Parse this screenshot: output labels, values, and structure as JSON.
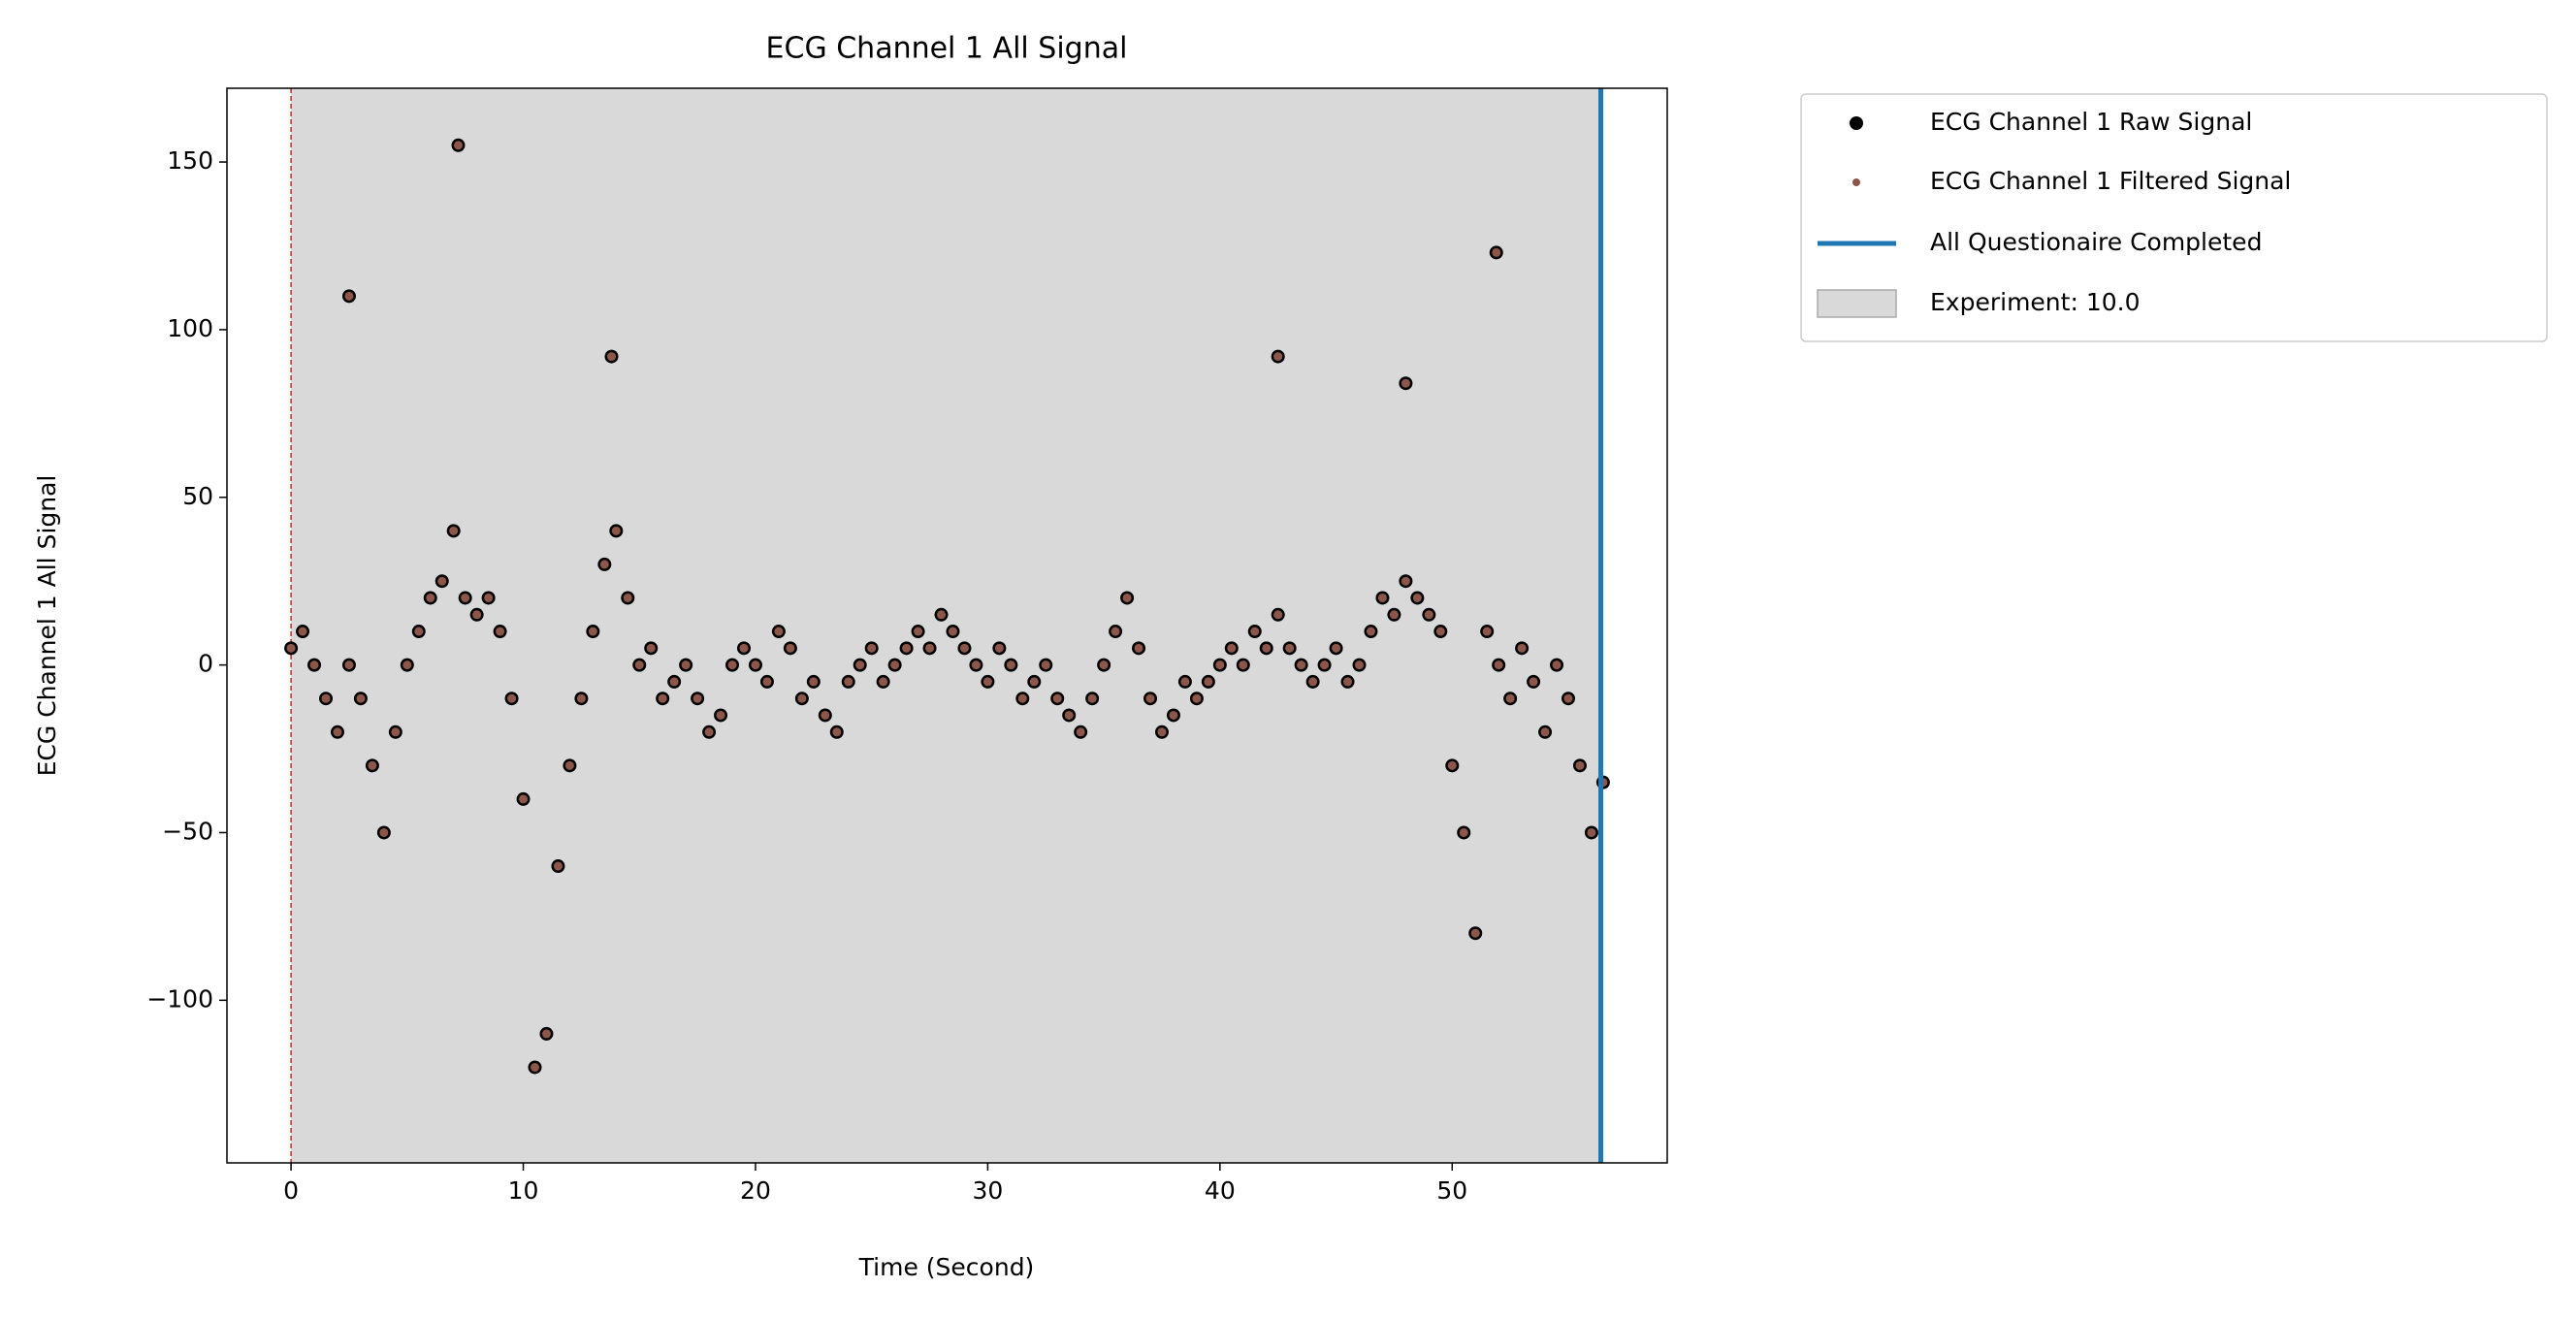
{
  "chart_data": {
    "type": "scatter",
    "title": "ECG Channel 1 All Signal",
    "xlabel": "Time (Second)",
    "ylabel": "ECG Channel 1 All Signal",
    "xlim": [
      -2.76,
      59.26
    ],
    "ylim": [
      -148.5,
      172
    ],
    "xticks": [
      0,
      10,
      20,
      30,
      40,
      50
    ],
    "yticks": [
      {
        "value": -100,
        "label": "−100"
      },
      {
        "value": -50,
        "label": "−50"
      },
      0,
      50,
      100,
      150
    ],
    "x": [
      0,
      0.5,
      1,
      1.5,
      2,
      2.5,
      2.5,
      3,
      3.5,
      4,
      4.5,
      5,
      5.5,
      6,
      6.5,
      7,
      7.2,
      7.5,
      8,
      8.5,
      9,
      9.5,
      10,
      10.5,
      11,
      11.5,
      12,
      12.5,
      13,
      13.5,
      13.8,
      14,
      14.5,
      15,
      15.5,
      16,
      16.5,
      17,
      17.5,
      18,
      18.5,
      19,
      19.5,
      20,
      20.5,
      21,
      21.5,
      22,
      22.5,
      23,
      23.5,
      24,
      24.5,
      25,
      25.5,
      26,
      26.5,
      27,
      27.5,
      28,
      28.5,
      29,
      29.5,
      30,
      30.5,
      31,
      31.5,
      32,
      32.5,
      33,
      33.5,
      34,
      34.5,
      35,
      35.5,
      36,
      36.5,
      37,
      37.5,
      38,
      38.5,
      39,
      39.5,
      40,
      40.5,
      41,
      41.5,
      42,
      42.5,
      42.5,
      43,
      43.5,
      44,
      44.5,
      45,
      45.5,
      46,
      46.5,
      47,
      47.5,
      48,
      48,
      48.5,
      49,
      49.5,
      50,
      50.5,
      51,
      51.5,
      51.9,
      52,
      52.5,
      53,
      53.5,
      54,
      54.5,
      55,
      55.5,
      56,
      56.5
    ],
    "series": [
      {
        "name": "ECG Channel 1 Raw Signal",
        "color": "#000000",
        "values": [
          5,
          10,
          0,
          -10,
          -20,
          0,
          110,
          -10,
          -30,
          -50,
          -20,
          0,
          10,
          20,
          25,
          40,
          155,
          20,
          15,
          20,
          10,
          -10,
          -40,
          -120,
          -110,
          -60,
          -30,
          -10,
          10,
          30,
          92,
          40,
          20,
          0,
          5,
          -10,
          -5,
          0,
          -10,
          -20,
          -15,
          0,
          5,
          0,
          -5,
          10,
          5,
          -10,
          -5,
          -15,
          -20,
          -5,
          0,
          5,
          -5,
          0,
          5,
          10,
          5,
          15,
          10,
          5,
          0,
          -5,
          5,
          0,
          -10,
          -5,
          0,
          -10,
          -15,
          -20,
          -10,
          0,
          10,
          20,
          5,
          -10,
          -20,
          -15,
          -5,
          -10,
          -5,
          0,
          5,
          0,
          10,
          5,
          15,
          92,
          5,
          0,
          -5,
          0,
          5,
          -5,
          0,
          10,
          20,
          15,
          25,
          84,
          20,
          15,
          10,
          -30,
          -50,
          -80,
          10,
          123,
          0,
          -10,
          5,
          -5,
          -20,
          0,
          -10,
          -30,
          -50,
          -35
        ]
      },
      {
        "name": "ECG Channel 1 Filtered Signal",
        "color": "#8c564b",
        "values": [
          5,
          10,
          0,
          -10,
          -20,
          0,
          110,
          -10,
          -30,
          -50,
          -20,
          0,
          10,
          20,
          25,
          40,
          155,
          20,
          15,
          20,
          10,
          -10,
          -40,
          -120,
          -110,
          -60,
          -30,
          -10,
          10,
          30,
          92,
          40,
          20,
          0,
          5,
          -10,
          -5,
          0,
          -10,
          -20,
          -15,
          0,
          5,
          0,
          -5,
          10,
          5,
          -10,
          -5,
          -15,
          -20,
          -5,
          0,
          5,
          -5,
          0,
          5,
          10,
          5,
          15,
          10,
          5,
          0,
          -5,
          5,
          0,
          -10,
          -5,
          0,
          -10,
          -15,
          -20,
          -10,
          0,
          10,
          20,
          5,
          -10,
          -20,
          -15,
          -5,
          -10,
          -5,
          0,
          5,
          0,
          10,
          5,
          15,
          92,
          5,
          0,
          -5,
          0,
          5,
          -5,
          0,
          10,
          20,
          15,
          25,
          84,
          20,
          15,
          10,
          -30,
          -50,
          -80,
          10,
          123,
          0,
          -10,
          5,
          -5,
          -20,
          0,
          -10,
          -30,
          -50,
          -35
        ]
      }
    ],
    "start_line": {
      "x": 0,
      "color": "#d62728"
    },
    "vline": {
      "x": 56.4,
      "label": "All Questionaire Completed",
      "color": "#1f77b4"
    },
    "span": {
      "x0": 0,
      "x1": 56.4,
      "label": "Experiment: 10.0",
      "color": "#d9d9d9"
    },
    "legend": "outside upper right"
  }
}
